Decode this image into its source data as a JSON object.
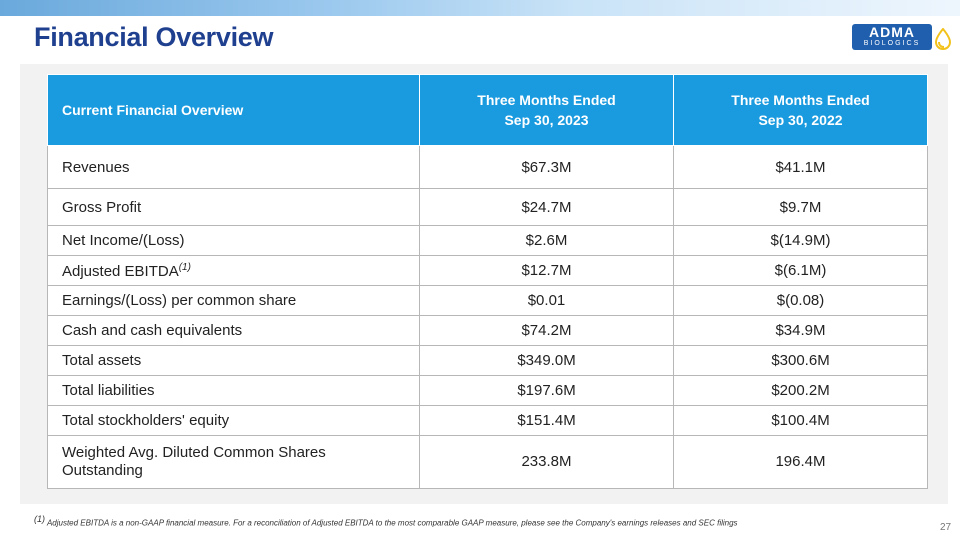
{
  "slide": {
    "title": "Financial Overview",
    "page_number": "27",
    "colors": {
      "title": "#1f3f8f",
      "header": "#1a9be0",
      "logo": "#1f5fae",
      "drop": "#f2c21b"
    }
  },
  "logo": {
    "main": "ADMA",
    "sub": "BIOLOGICS"
  },
  "table": {
    "headers": {
      "label": "Current Financial Overview",
      "col1_line1": "Three Months Ended",
      "col1_line2": "Sep 30, 2023",
      "col2_line1": "Three Months Ended",
      "col2_line2": "Sep 30, 2022"
    },
    "rows": [
      {
        "label": "Revenues",
        "v2023": "$67.3M",
        "v2022": "$41.1M"
      },
      {
        "label": "Gross Profit",
        "v2023": "$24.7M",
        "v2022": "$9.7M"
      },
      {
        "label": "Net Income/(Loss)",
        "v2023": "$2.6M",
        "v2022": "$(14.9M)"
      },
      {
        "label": "Adjusted EBITDA",
        "sup": "(1)",
        "v2023": "$12.7M",
        "v2022": "$(6.1M)"
      },
      {
        "label": "Earnings/(Loss) per common share",
        "v2023": "$0.01",
        "v2022": "$(0.08)"
      },
      {
        "label": "Cash and cash equivalents",
        "v2023": "$74.2M",
        "v2022": "$34.9M"
      },
      {
        "label": "Total assets",
        "v2023": "$349.0M",
        "v2022": "$300.6M"
      },
      {
        "label": "Total liabilities",
        "v2023": "$197.6M",
        "v2022": "$200.2M"
      },
      {
        "label": "Total stockholders' equity",
        "v2023": "$151.4M",
        "v2022": "$100.4M"
      },
      {
        "label": "Weighted Avg. Diluted Common Shares Outstanding",
        "v2023": "233.8M",
        "v2022": "196.4M"
      }
    ]
  },
  "footnote": {
    "marker": "(1)",
    "text": "Adjusted EBITDA is a non-GAAP financial measure. For a reconciliation of Adjusted EBITDA to the most comparable GAAP measure, please see the Company's earnings releases and SEC filings"
  }
}
